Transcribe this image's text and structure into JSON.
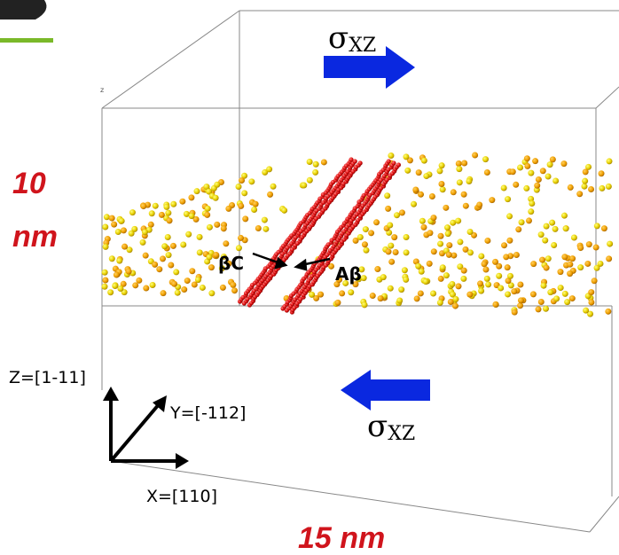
{
  "labels": {
    "stress_top": {
      "symbol": "σ",
      "subscript": "XZ"
    },
    "stress_bottom": {
      "symbol": "σ",
      "subscript": "XZ"
    },
    "height": {
      "number": "10",
      "unit": "nm"
    },
    "width": "15 nm",
    "partial_left": "βC",
    "partial_right": "Aβ",
    "axis_corner": "z",
    "axis_z": "Z=[1-11]",
    "axis_y": "Y=[-112]",
    "axis_x": "X=[110]"
  }
}
